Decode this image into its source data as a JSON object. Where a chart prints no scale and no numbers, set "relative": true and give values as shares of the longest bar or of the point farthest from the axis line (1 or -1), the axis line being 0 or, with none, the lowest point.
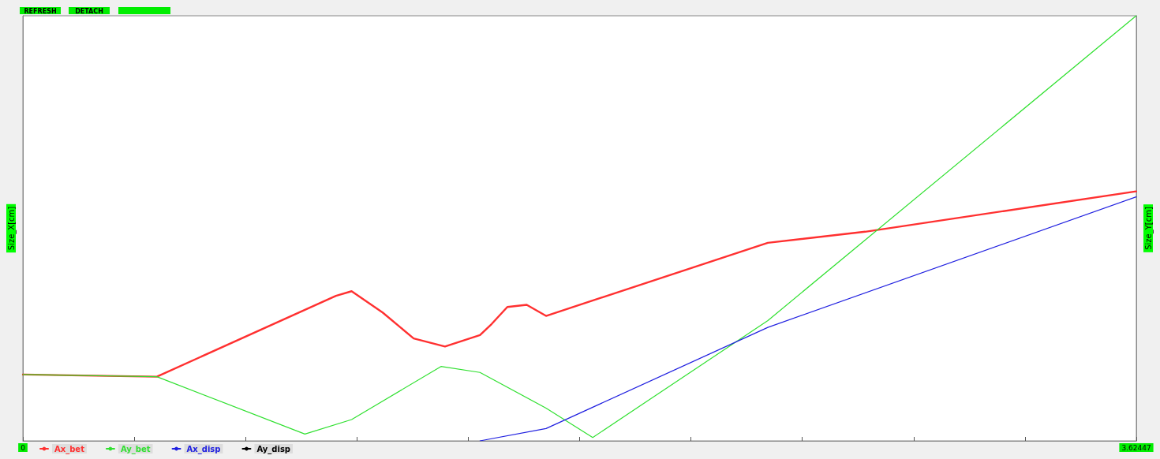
{
  "chart_data": {
    "type": "line",
    "relative": true,
    "ylabel": "Size_X[cm]",
    "y2label": "Size_Y[cm]",
    "annotations": [
      "REFRESH",
      "DETACH"
    ],
    "xlim": [
      0,
      3.62447
    ],
    "xticks": [
      {
        "value": 0,
        "label": "0"
      },
      {
        "value": 0.362447,
        "label": null
      },
      {
        "value": 0.724894,
        "label": null
      },
      {
        "value": 1.087341,
        "label": null
      },
      {
        "value": 1.449788,
        "label": null
      },
      {
        "value": 1.812235,
        "label": null
      },
      {
        "value": 2.174682,
        "label": null
      },
      {
        "value": 2.537129,
        "label": null
      },
      {
        "value": 2.899576,
        "label": null
      },
      {
        "value": 3.262023,
        "label": null
      },
      {
        "value": 3.62447,
        "label": "3.62447"
      }
    ],
    "legend": "bottom left",
    "grid": false,
    "marker": "none",
    "line_style": "solid",
    "series": [
      {
        "name": "Ax_bet",
        "color": "#ff3030",
        "x": [
          0,
          0.436,
          1.019,
          1.07,
          1.171,
          1.272,
          1.374,
          1.488,
          1.526,
          1.577,
          1.64,
          1.703,
          2.425,
          2.742,
          3.624
        ],
        "values": [
          0.156,
          0.151,
          0.341,
          0.352,
          0.302,
          0.241,
          0.222,
          0.249,
          0.275,
          0.315,
          0.32,
          0.294,
          0.466,
          0.492,
          0.587
        ]
      },
      {
        "name": "Ay_bet",
        "color": "#30e030",
        "x": [
          0,
          0.436,
          0.918,
          1.07,
          1.361,
          1.488,
          1.703,
          1.855,
          2.425,
          3.624
        ],
        "values": [
          0.156,
          0.151,
          0.016,
          0.05,
          0.175,
          0.161,
          0.077,
          0.008,
          0.283,
          1.0
        ]
      },
      {
        "name": "Ax_disp",
        "color": "#2020e0",
        "x": [
          1.488,
          1.703,
          2.425,
          3.624
        ],
        "values": [
          0,
          0.029,
          0.267,
          0.574
        ]
      },
      {
        "name": "Ay_disp",
        "color": "#000000"
      }
    ]
  }
}
